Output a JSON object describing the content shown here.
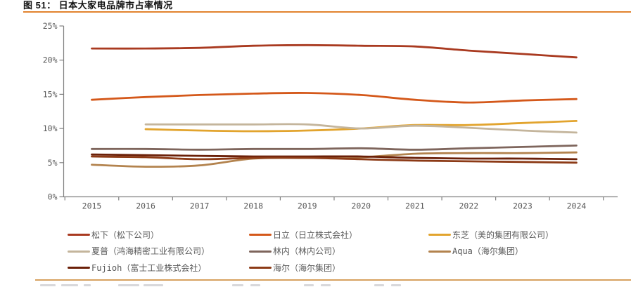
{
  "title": "图 51：  日本大家电品牌市占率情况",
  "accent_rule_color": "#E2832F",
  "footer_rule_color": "#D7A15F",
  "chart_data": {
    "type": "line",
    "title": "日本大家电品牌市占率情况",
    "categories": [
      "2015",
      "2016",
      "2017",
      "2018",
      "2019",
      "2020",
      "2021",
      "2022",
      "2023",
      "2024"
    ],
    "y_ticks": [
      "0%",
      "5%",
      "10%",
      "15%",
      "20%",
      "25%"
    ],
    "ylim": [
      0,
      25
    ],
    "grid": false,
    "legend_position": "bottom",
    "axis_color": "#808080",
    "tick_label_color": "#595959",
    "series": [
      {
        "name": "松下（松下公司）",
        "color": "#A93A20",
        "values": [
          21.7,
          21.7,
          21.8,
          22.1,
          22.2,
          22.1,
          22.0,
          21.4,
          20.9,
          20.4
        ]
      },
      {
        "name": "日立（日立株式会社）",
        "color": "#D4581A",
        "values": [
          14.2,
          14.6,
          14.9,
          15.1,
          15.2,
          14.9,
          14.2,
          13.8,
          14.1,
          14.3
        ]
      },
      {
        "name": "东芝（美的集团有限公司）",
        "color": "#E2A42E",
        "values": [
          null,
          9.9,
          9.7,
          9.6,
          9.7,
          10.0,
          10.5,
          10.5,
          10.8,
          11.1
        ]
      },
      {
        "name": "夏普（鸿海精密工业有限公司）",
        "color": "#C4B59C",
        "values": [
          null,
          10.6,
          10.6,
          10.6,
          10.6,
          10.0,
          10.4,
          10.1,
          9.7,
          9.4
        ]
      },
      {
        "name": "林内（林内公司）",
        "color": "#7E655C",
        "values": [
          7.0,
          7.0,
          6.9,
          7.0,
          7.0,
          7.1,
          6.9,
          7.1,
          7.3,
          7.5
        ]
      },
      {
        "name": "Aqua（海尔集团）",
        "color": "#B3834E",
        "values": [
          4.7,
          4.4,
          4.6,
          5.6,
          5.7,
          5.8,
          6.3,
          6.4,
          6.4,
          6.5
        ]
      },
      {
        "name": "Fujioh（富士工业株式会社）",
        "color": "#6B2008",
        "values": [
          6.2,
          6.1,
          6.0,
          5.9,
          5.9,
          5.9,
          5.7,
          5.6,
          5.6,
          5.5
        ]
      },
      {
        "name": "海尔（海尔集团）",
        "color": "#8C3A16",
        "values": [
          5.9,
          5.8,
          5.5,
          5.7,
          5.7,
          5.5,
          5.3,
          5.2,
          5.1,
          5.0
        ]
      }
    ]
  }
}
